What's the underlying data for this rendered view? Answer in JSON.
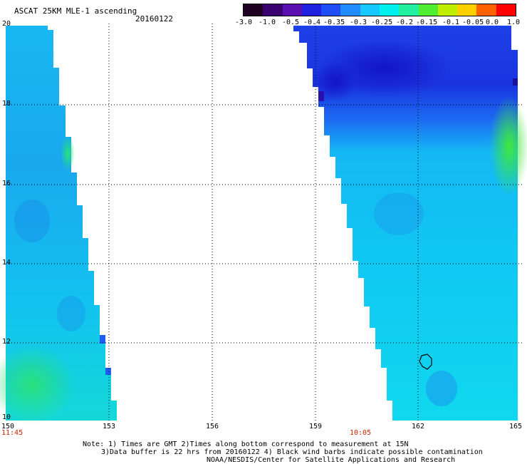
{
  "header": {
    "title": "ASCAT 25KM MLE-1 ascending",
    "date": "20160122"
  },
  "colorbar": {
    "labels": [
      "-3.0",
      "-1.0",
      "-0.5",
      "-0.4",
      "-0.35",
      "-0.3",
      "-0.25",
      "-0.2",
      "-0.15",
      "-0.1",
      "-0.05",
      "0.0",
      "1.0"
    ],
    "colors": [
      "#200020",
      "#3a0070",
      "#5a10b0",
      "#2020e0",
      "#1e4cf5",
      "#1f8cff",
      "#16c8ff",
      "#00f0ee",
      "#20f0a0",
      "#50ee30",
      "#c0ee00",
      "#ffd000",
      "#ff6000",
      "#ff0000"
    ]
  },
  "map": {
    "lon_labels": [
      "150",
      "153",
      "156",
      "159",
      "162",
      "165"
    ],
    "lat_labels": [
      "20",
      "18",
      "16",
      "14",
      "12",
      "10"
    ],
    "lon_range": [
      150,
      165
    ],
    "lat_range": [
      10,
      20
    ],
    "time_labels": [
      "11:45",
      "10:05"
    ]
  },
  "footer": {
    "line1": "Note: 1) Times are GMT 2)Times along bottom correspond to measurement at 15N",
    "line2": "3)Data buffer is 22 hrs from 20160122 4) Black wind barbs indicate possible contamination",
    "line3": "NOAA/NESDIS/Center for Satellite Applications and Research"
  }
}
